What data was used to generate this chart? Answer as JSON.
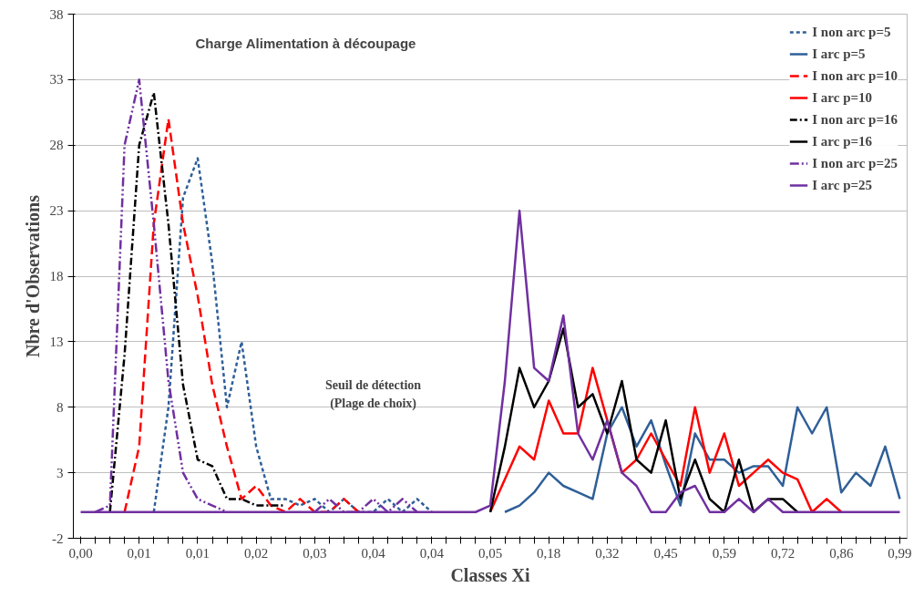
{
  "chart_data": {
    "type": "line",
    "title": "Charge Alimentation à découpage",
    "xlabel": "Classes Xi",
    "ylabel": "Nbre d'Observations",
    "categories": [
      "0,00",
      null,
      null,
      null,
      "0,01",
      null,
      null,
      null,
      "0,01",
      null,
      null,
      null,
      "0,02",
      null,
      null,
      null,
      "0,03",
      null,
      null,
      null,
      "0,04",
      null,
      null,
      null,
      "0,04",
      null,
      null,
      null,
      "0,05",
      null,
      null,
      null,
      "0,18",
      null,
      null,
      null,
      "0,32",
      null,
      null,
      null,
      "0,45",
      null,
      null,
      null,
      "0,59",
      null,
      null,
      null,
      "0,72",
      null,
      null,
      null,
      "0,86",
      null,
      null,
      null,
      "0,99"
    ],
    "ylim": [
      -2,
      38
    ],
    "yticks": [
      -2,
      3,
      8,
      13,
      18,
      23,
      28,
      33,
      38
    ],
    "grid": "y",
    "legend": "top right",
    "annotations": [
      "Seuil de détection\n(Plage de choix)"
    ],
    "series": [
      {
        "name": "I non arc p=5",
        "color": "#2f5f98",
        "line_style": "dashed",
        "values": [
          null,
          null,
          null,
          null,
          null,
          0,
          8,
          24,
          27,
          19,
          8,
          13,
          5,
          1,
          1,
          0.5,
          1,
          0,
          1,
          0,
          0,
          1,
          0,
          1,
          0,
          null,
          null,
          null,
          null,
          null,
          null,
          null,
          null,
          null,
          null,
          null,
          null,
          null,
          null,
          null,
          null,
          null,
          null,
          null,
          null,
          null,
          null,
          null,
          null,
          null,
          null,
          null,
          null,
          null,
          null,
          null,
          null
        ]
      },
      {
        "name": "I arc p=5",
        "color": "#2f5f98",
        "line_style": "solid",
        "values": [
          null,
          null,
          null,
          null,
          null,
          null,
          null,
          null,
          null,
          null,
          null,
          null,
          null,
          null,
          null,
          null,
          null,
          null,
          null,
          null,
          null,
          null,
          null,
          null,
          null,
          null,
          null,
          null,
          null,
          0,
          0.5,
          1.5,
          3,
          2,
          1.5,
          1,
          6,
          8,
          5,
          7,
          3.6,
          0.5,
          6,
          4,
          4,
          3,
          3.5,
          3.5,
          2,
          8,
          6,
          8,
          1.5,
          3,
          2,
          5,
          1
        ]
      },
      {
        "name": "I non arc p=10",
        "color": "#ff0000",
        "line_style": "dashed",
        "values": [
          null,
          null,
          null,
          0,
          5,
          22,
          30,
          22,
          16.5,
          9.7,
          5,
          1,
          2,
          0.5,
          0,
          1,
          0,
          0,
          1,
          0,
          null,
          null,
          null,
          null,
          null,
          null,
          null,
          null,
          null,
          null,
          null,
          null,
          null,
          null,
          null,
          null,
          null,
          null,
          null,
          null,
          null,
          null,
          null,
          null,
          null,
          null,
          null,
          null,
          null,
          null,
          null,
          null,
          null,
          null,
          null,
          null,
          null
        ]
      },
      {
        "name": "I arc p=10",
        "color": "#ff0000",
        "line_style": "solid",
        "values": [
          null,
          null,
          null,
          null,
          null,
          null,
          null,
          null,
          null,
          null,
          null,
          null,
          null,
          null,
          null,
          null,
          null,
          null,
          null,
          null,
          null,
          null,
          null,
          null,
          null,
          null,
          null,
          null,
          0,
          2.5,
          5,
          4,
          8.5,
          6,
          6,
          11,
          7,
          3,
          4,
          6,
          4,
          2,
          8,
          3,
          6,
          2,
          3,
          4,
          3,
          2.5,
          0,
          1,
          0,
          null,
          null,
          null,
          null
        ]
      },
      {
        "name": "I non arc p=16",
        "color": "#000000",
        "line_style": "dashed",
        "values": [
          null,
          null,
          0,
          12,
          28,
          32,
          22,
          9.7,
          4,
          3.5,
          1,
          1,
          0.5,
          0.5,
          0.5,
          null,
          null,
          null,
          null,
          null,
          null,
          null,
          null,
          null,
          null,
          null,
          null,
          null,
          null,
          null,
          null,
          null,
          null,
          null,
          null,
          null,
          null,
          null,
          null,
          null,
          null,
          null,
          null,
          null,
          null,
          null,
          null,
          null,
          null,
          null,
          null,
          null,
          null,
          null,
          null,
          null,
          null
        ]
      },
      {
        "name": "I arc p=16",
        "color": "#000000",
        "line_style": "solid",
        "values": [
          null,
          null,
          null,
          null,
          null,
          null,
          null,
          null,
          null,
          null,
          null,
          null,
          null,
          null,
          null,
          null,
          null,
          null,
          null,
          null,
          null,
          null,
          null,
          null,
          null,
          null,
          null,
          null,
          0,
          5,
          11,
          8,
          10,
          14,
          8,
          9,
          6,
          10,
          4,
          3,
          7,
          1,
          4,
          1,
          0,
          4,
          0,
          1,
          1,
          0,
          null,
          null,
          null,
          null,
          null,
          null,
          null
        ]
      },
      {
        "name": "I non arc p=25",
        "color": "#7030a0",
        "line_style": "dashed",
        "values": [
          null,
          0,
          0.5,
          28,
          33,
          22,
          10,
          3,
          1,
          0.5,
          0,
          null,
          null,
          null,
          null,
          null,
          0,
          1,
          0,
          0,
          1,
          0,
          1,
          0,
          null,
          null,
          null,
          null,
          null,
          null,
          null,
          null,
          null,
          null,
          null,
          null,
          null,
          null,
          null,
          null,
          null,
          null,
          null,
          null,
          null,
          null,
          null,
          null,
          null,
          null,
          null,
          null,
          null,
          null,
          null,
          null,
          null
        ]
      },
      {
        "name": "I arc p=25",
        "color": "#7030a0",
        "line_style": "solid",
        "values": [
          0,
          0,
          0,
          0,
          0,
          0,
          0,
          0,
          0,
          0,
          0,
          0,
          0,
          0,
          0,
          0,
          0,
          0,
          0,
          0,
          0,
          0,
          0,
          0,
          0,
          0,
          0,
          0,
          0.5,
          10,
          23,
          11,
          10,
          15,
          6,
          4,
          7,
          3,
          2,
          0,
          0,
          1.5,
          2,
          0,
          0,
          1,
          0,
          1,
          0,
          0,
          0,
          0,
          0,
          0,
          0,
          0,
          0
        ]
      }
    ]
  }
}
